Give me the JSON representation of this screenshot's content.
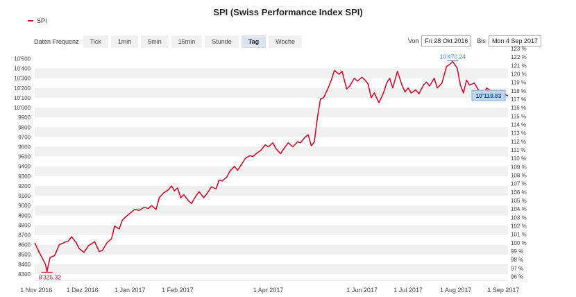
{
  "title": "SPI (Swiss Performance Index SPI)",
  "legend": {
    "series_name": "SPI",
    "color": "#c8102e"
  },
  "toolbar": {
    "label": "Daten Frequenz",
    "tabs": [
      {
        "label": "Tick",
        "active": false
      },
      {
        "label": "1min",
        "active": false
      },
      {
        "label": "5min",
        "active": false
      },
      {
        "label": "15min",
        "active": false
      },
      {
        "label": "Stunde",
        "active": false
      },
      {
        "label": "Tag",
        "active": true
      },
      {
        "label": "Woche",
        "active": false
      }
    ]
  },
  "daterange": {
    "from_label": "Von",
    "from_value": "Fri 28 Okt 2016",
    "to_label": "Bis",
    "to_value": "Mon 4 Sep 2017"
  },
  "chart_data": {
    "type": "line",
    "series": [
      {
        "name": "SPI",
        "color": "#c8102e",
        "points": [
          [
            "2016-10-31",
            8620
          ],
          [
            "2016-11-03",
            8520
          ],
          [
            "2016-11-07",
            8400
          ],
          [
            "2016-11-08",
            8325.32
          ],
          [
            "2016-11-10",
            8470
          ],
          [
            "2016-11-13",
            8490
          ],
          [
            "2016-11-16",
            8600
          ],
          [
            "2016-11-19",
            8620
          ],
          [
            "2016-11-22",
            8640
          ],
          [
            "2016-11-24",
            8680
          ],
          [
            "2016-11-27",
            8620
          ],
          [
            "2016-11-29",
            8560
          ],
          [
            "2016-12-02",
            8520
          ],
          [
            "2016-12-05",
            8590
          ],
          [
            "2016-12-07",
            8610
          ],
          [
            "2016-12-09",
            8630
          ],
          [
            "2016-12-12",
            8530
          ],
          [
            "2016-12-14",
            8540
          ],
          [
            "2016-12-17",
            8620
          ],
          [
            "2016-12-20",
            8660
          ],
          [
            "2016-12-22",
            8790
          ],
          [
            "2016-12-25",
            8760
          ],
          [
            "2016-12-27",
            8850
          ],
          [
            "2016-12-29",
            8880
          ],
          [
            "2017-01-01",
            8920
          ],
          [
            "2017-01-04",
            8960
          ],
          [
            "2017-01-07",
            8950
          ],
          [
            "2017-01-10",
            8980
          ],
          [
            "2017-01-13",
            8970
          ],
          [
            "2017-01-15",
            9000
          ],
          [
            "2017-01-18",
            8960
          ],
          [
            "2017-01-20",
            9080
          ],
          [
            "2017-01-23",
            9130
          ],
          [
            "2017-01-26",
            9160
          ],
          [
            "2017-01-28",
            9200
          ],
          [
            "2017-01-30",
            9150
          ],
          [
            "2017-02-01",
            9180
          ],
          [
            "2017-02-03",
            9080
          ],
          [
            "2017-02-05",
            9110
          ],
          [
            "2017-02-08",
            9050
          ],
          [
            "2017-02-10",
            9020
          ],
          [
            "2017-02-13",
            9100
          ],
          [
            "2017-02-15",
            9140
          ],
          [
            "2017-02-18",
            9080
          ],
          [
            "2017-02-20",
            9120
          ],
          [
            "2017-02-23",
            9190
          ],
          [
            "2017-02-26",
            9170
          ],
          [
            "2017-02-28",
            9260
          ],
          [
            "2017-03-02",
            9250
          ],
          [
            "2017-03-05",
            9290
          ],
          [
            "2017-03-07",
            9350
          ],
          [
            "2017-03-10",
            9400
          ],
          [
            "2017-03-12",
            9360
          ],
          [
            "2017-03-15",
            9430
          ],
          [
            "2017-03-17",
            9480
          ],
          [
            "2017-03-20",
            9510
          ],
          [
            "2017-03-22",
            9500
          ],
          [
            "2017-03-25",
            9540
          ],
          [
            "2017-03-27",
            9560
          ],
          [
            "2017-03-30",
            9620
          ],
          [
            "2017-04-01",
            9600
          ],
          [
            "2017-04-04",
            9640
          ],
          [
            "2017-04-06",
            9580
          ],
          [
            "2017-04-09",
            9530
          ],
          [
            "2017-04-12",
            9600
          ],
          [
            "2017-04-14",
            9640
          ],
          [
            "2017-04-17",
            9600
          ],
          [
            "2017-04-20",
            9650
          ],
          [
            "2017-04-22",
            9640
          ],
          [
            "2017-04-25",
            9700
          ],
          [
            "2017-04-27",
            9720
          ],
          [
            "2017-04-29",
            9610
          ],
          [
            "2017-05-01",
            9650
          ],
          [
            "2017-05-03",
            9900
          ],
          [
            "2017-05-05",
            10090
          ],
          [
            "2017-05-07",
            10100
          ],
          [
            "2017-05-10",
            10200
          ],
          [
            "2017-05-12",
            10280
          ],
          [
            "2017-05-14",
            10380
          ],
          [
            "2017-05-17",
            10340
          ],
          [
            "2017-05-19",
            10370
          ],
          [
            "2017-05-22",
            10190
          ],
          [
            "2017-05-24",
            10220
          ],
          [
            "2017-05-27",
            10300
          ],
          [
            "2017-05-29",
            10270
          ],
          [
            "2017-06-01",
            10310
          ],
          [
            "2017-06-03",
            10280
          ],
          [
            "2017-06-05",
            10240
          ],
          [
            "2017-06-07",
            10100
          ],
          [
            "2017-06-09",
            10150
          ],
          [
            "2017-06-12",
            10050
          ],
          [
            "2017-06-15",
            10150
          ],
          [
            "2017-06-17",
            10250
          ],
          [
            "2017-06-19",
            10300
          ],
          [
            "2017-06-21",
            10200
          ],
          [
            "2017-06-24",
            10370
          ],
          [
            "2017-06-27",
            10230
          ],
          [
            "2017-06-29",
            10160
          ],
          [
            "2017-07-01",
            10200
          ],
          [
            "2017-07-03",
            10150
          ],
          [
            "2017-07-06",
            10180
          ],
          [
            "2017-07-08",
            10140
          ],
          [
            "2017-07-11",
            10230
          ],
          [
            "2017-07-13",
            10260
          ],
          [
            "2017-07-15",
            10220
          ],
          [
            "2017-07-18",
            10300
          ],
          [
            "2017-07-20",
            10200
          ],
          [
            "2017-07-23",
            10250
          ],
          [
            "2017-07-26",
            10420
          ],
          [
            "2017-07-28",
            10440
          ],
          [
            "2017-07-30",
            10470.24
          ],
          [
            "2017-08-02",
            10400
          ],
          [
            "2017-08-04",
            10230
          ],
          [
            "2017-08-06",
            10150
          ],
          [
            "2017-08-08",
            10280
          ],
          [
            "2017-08-10",
            10230
          ],
          [
            "2017-08-13",
            10250
          ],
          [
            "2017-08-15",
            10200
          ],
          [
            "2017-08-17",
            10150
          ],
          [
            "2017-08-19",
            10120
          ],
          [
            "2017-08-21",
            10200
          ],
          [
            "2017-08-23",
            10180
          ],
          [
            "2017-08-25",
            10119.83
          ],
          [
            "2017-08-28",
            10130
          ],
          [
            "2017-08-30",
            10170
          ],
          [
            "2017-09-01",
            10140
          ],
          [
            "2017-09-04",
            10119.83
          ]
        ]
      }
    ],
    "x_ticks": [
      {
        "label": "1 Nov 2016",
        "date": "2016-11-01"
      },
      {
        "label": "1 Dez 2016",
        "date": "2016-12-01"
      },
      {
        "label": "1 Jan 2017",
        "date": "2017-01-01"
      },
      {
        "label": "1 Feb 2017",
        "date": "2017-02-01"
      },
      {
        "label": "1 Apr 2017",
        "date": "2017-04-01"
      },
      {
        "label": "1 Jun 2017",
        "date": "2017-06-01"
      },
      {
        "label": "1 Jul 2017",
        "date": "2017-07-01"
      },
      {
        "label": "1 Aug 2017",
        "date": "2017-08-01"
      },
      {
        "label": "1 Sep 2017",
        "date": "2017-09-01"
      }
    ],
    "y_ticks_left": [
      "8300",
      "8400",
      "8500",
      "8600",
      "8700",
      "8800",
      "8900",
      "9000",
      "9100",
      "9200",
      "9300",
      "9400",
      "9500",
      "9600",
      "9700",
      "9800",
      "9900",
      "10'000",
      "10'100",
      "10'200",
      "10'300",
      "10'400",
      "10'500"
    ],
    "y_left_values": [
      8300,
      8400,
      8500,
      8600,
      8700,
      8800,
      8900,
      9000,
      9100,
      9200,
      9300,
      9400,
      9500,
      9600,
      9700,
      9800,
      9900,
      10000,
      10100,
      10200,
      10300,
      10400,
      10500
    ],
    "y_ticks_right": [
      "96 %",
      "97 %",
      "98 %",
      "99 %",
      "100 %",
      "101 %",
      "102 %",
      "103 %",
      "104 %",
      "105 %",
      "106 %",
      "107 %",
      "108 %",
      "109 %",
      "110 %",
      "111 %",
      "112 %",
      "113 %",
      "114 %",
      "115 %",
      "116 %",
      "117 %",
      "118 %",
      "119 %",
      "120 %",
      "121 %",
      "122 %",
      "123 %"
    ],
    "y_right_values": [
      96,
      97,
      98,
      99,
      100,
      101,
      102,
      103,
      104,
      105,
      106,
      107,
      108,
      109,
      110,
      111,
      112,
      113,
      114,
      115,
      116,
      117,
      118,
      119,
      120,
      121,
      122,
      123
    ],
    "xlim": [
      "2016-10-31",
      "2017-09-04"
    ],
    "ylim": [
      8250,
      10560
    ],
    "annotations": {
      "min_label": "8'325.32",
      "max_label": "10'470.24",
      "last_label": "10'119.83"
    },
    "grid": true
  }
}
